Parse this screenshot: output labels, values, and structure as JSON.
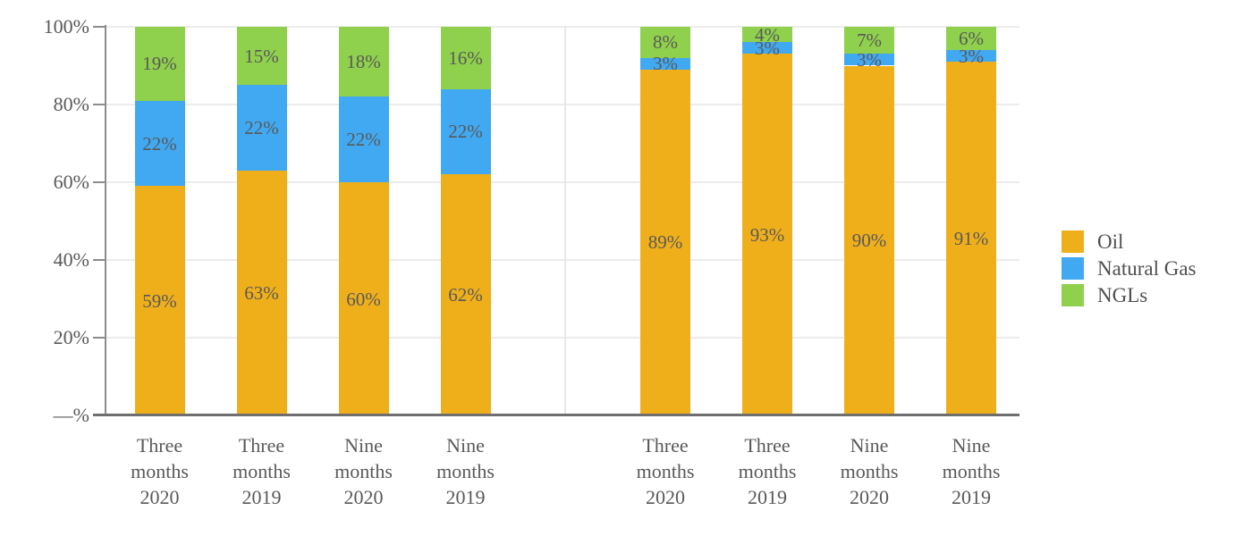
{
  "chart_data": {
    "type": "bar",
    "stacking": "percent",
    "title": "",
    "xlabel": "",
    "ylabel": "",
    "ylim": [
      0,
      100
    ],
    "grid": {
      "horizontal": true,
      "vertical_group_divider": true
    },
    "legend_position": "right",
    "categories": [
      [
        "Three",
        "months",
        "2020"
      ],
      [
        "Three",
        "months",
        "2019"
      ],
      [
        "Nine",
        "months",
        "2020"
      ],
      [
        "Nine",
        "months",
        "2019"
      ],
      [
        "Three",
        "months",
        "2020"
      ],
      [
        "Three",
        "months",
        "2019"
      ],
      [
        "Nine",
        "months",
        "2020"
      ],
      [
        "Nine",
        "months",
        "2019"
      ]
    ],
    "groups": {
      "left": [
        0,
        1,
        2,
        3
      ],
      "right": [
        4,
        5,
        6,
        7
      ]
    },
    "series": [
      {
        "name": "Oil",
        "color": "#EFAF1B",
        "values": [
          59,
          63,
          60,
          62,
          89,
          93,
          90,
          91
        ]
      },
      {
        "name": "Natural Gas",
        "color": "#41A9F1",
        "values": [
          22,
          22,
          22,
          22,
          3,
          3,
          3,
          3
        ]
      },
      {
        "name": "NGLs",
        "color": "#8FD04C",
        "values": [
          19,
          15,
          18,
          16,
          8,
          4,
          7,
          6
        ]
      }
    ],
    "data_label_suffix": "%",
    "y_ticks": [
      {
        "value": 100,
        "label": "100%"
      },
      {
        "value": 80,
        "label": "80%"
      },
      {
        "value": 60,
        "label": "60%"
      },
      {
        "value": 40,
        "label": "40%"
      },
      {
        "value": 20,
        "label": "20%"
      },
      {
        "value": 0,
        "label": "—%"
      }
    ]
  },
  "colors": {
    "background": "#FFFFFF",
    "bar_label": "#595959",
    "axis_label": "#595959",
    "legend_label": "#4F4F4F",
    "gridline": "#ECECEC",
    "group_divider": "#E8E8E8",
    "axis_line": "#8C8C8C",
    "baseline": "#6E6E6E"
  }
}
